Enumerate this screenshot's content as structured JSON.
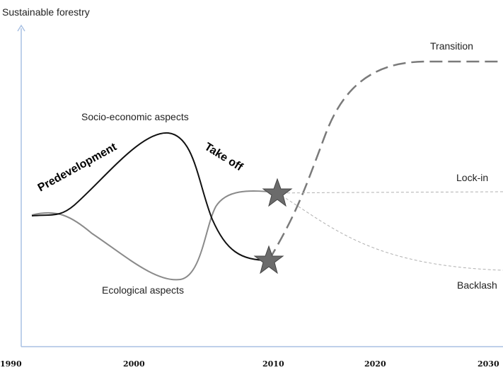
{
  "y_axis_label": "Sustainable forestry",
  "x_ticks": [
    "1990",
    "2000",
    "2010",
    "2020",
    "2030"
  ],
  "curve_labels": {
    "socio_economic": "Socio-economic aspects",
    "ecological": "Ecological aspects"
  },
  "phase_labels": {
    "predevelopment": "Predevelopment",
    "take_off": "Take off"
  },
  "scenarios": {
    "transition": "Transition",
    "lock_in": "Lock-in",
    "backlash": "Backlash"
  },
  "colors": {
    "axis": "#a9c1e3",
    "socio_curve": "#111111",
    "eco_curve": "#8a8a8a",
    "transition_line": "#7a7a7a",
    "light_dashes": "#b0b0b0",
    "star_fill": "#6b6b6b"
  }
}
